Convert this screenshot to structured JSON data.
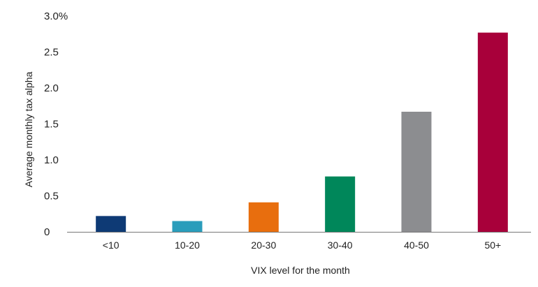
{
  "chart_data": {
    "type": "bar",
    "title": "",
    "xlabel": "VIX level for the month",
    "ylabel": "Average monthly tax alpha",
    "categories": [
      "<10",
      "10-20",
      "20-30",
      "30-40",
      "40-50",
      "50+"
    ],
    "values": [
      0.22,
      0.15,
      0.41,
      0.77,
      1.67,
      2.77
    ],
    "colors": [
      "#0e3a75",
      "#2a9dbb",
      "#e86e0e",
      "#00875a",
      "#8c8d90",
      "#a8003a"
    ],
    "ylim": [
      0,
      3.0
    ],
    "yticks": [
      {
        "value": 0,
        "label": "0"
      },
      {
        "value": 0.5,
        "label": "0.5"
      },
      {
        "value": 1.0,
        "label": "1.0"
      },
      {
        "value": 1.5,
        "label": "1.5"
      },
      {
        "value": 2.0,
        "label": "2.0"
      },
      {
        "value": 2.5,
        "label": "2.5"
      },
      {
        "value": 3.0,
        "label": "3.0%"
      }
    ],
    "grid": false,
    "legend": "none",
    "axis_color": "#777777"
  }
}
